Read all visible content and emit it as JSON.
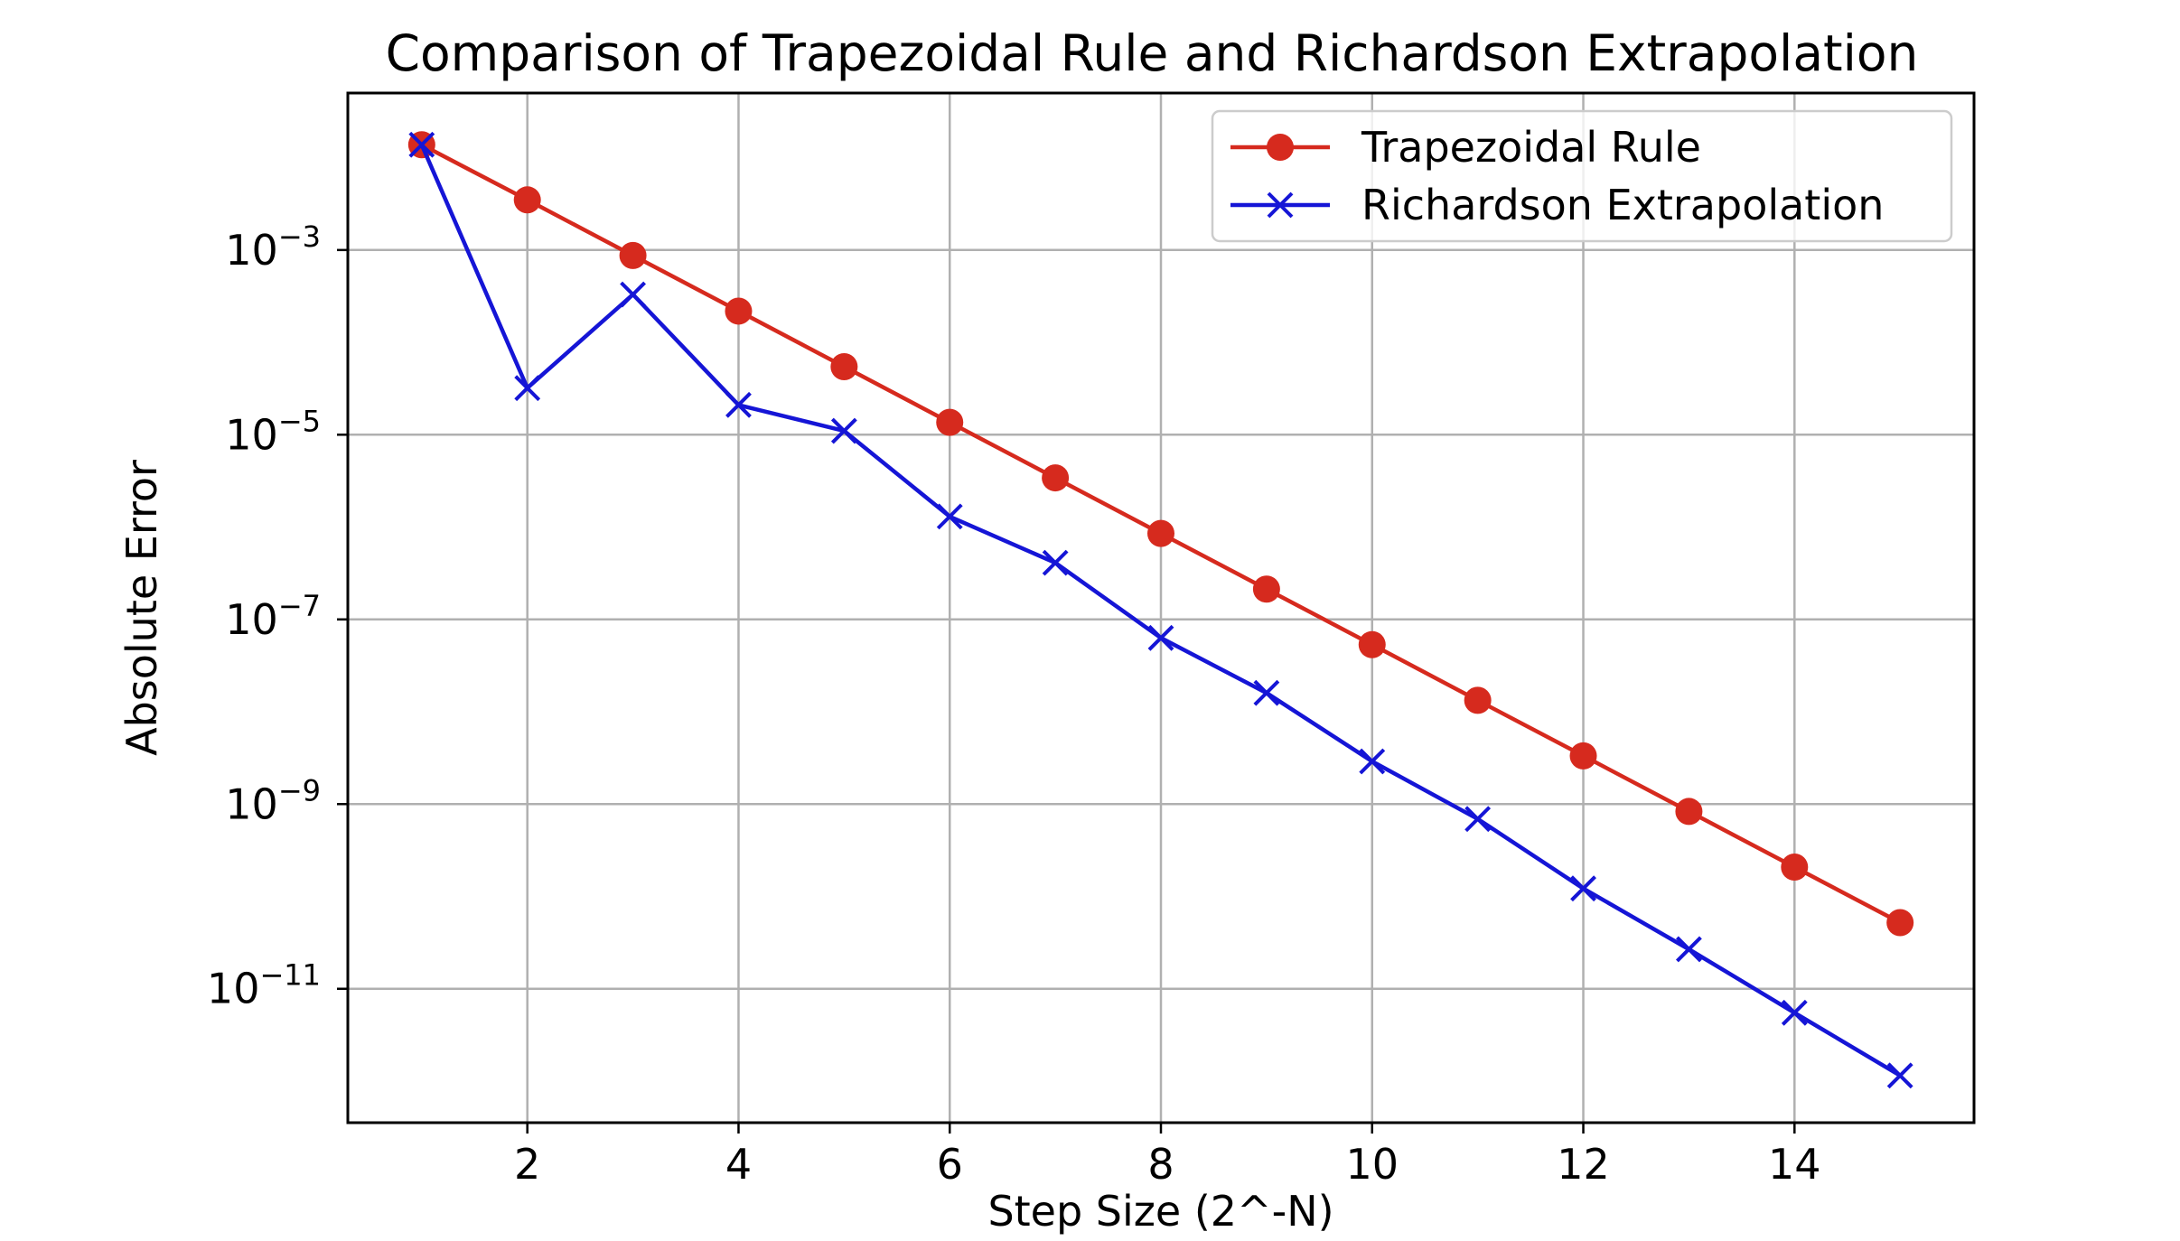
{
  "chart_data": {
    "type": "line",
    "title": "Comparison of Trapezoidal Rule and Richardson Extrapolation",
    "xlabel": "Step Size (2^-N)",
    "ylabel": "Absolute Error",
    "xscale": "linear",
    "yscale": "log",
    "xlim": [
      0.3,
      15.7
    ],
    "ylim_log10": [
      -12.45,
      -1.3
    ],
    "grid": true,
    "legend_position": "upper right",
    "x_ticks": [
      2,
      4,
      6,
      8,
      10,
      12,
      14
    ],
    "x_tick_labels": [
      "2",
      "4",
      "6",
      "8",
      "10",
      "12",
      "14"
    ],
    "y_ticks_log10": [
      -3,
      -5,
      -7,
      -9,
      -11
    ],
    "y_tick_labels": [
      {
        "base": "10",
        "exp": "−3"
      },
      {
        "base": "10",
        "exp": "−5"
      },
      {
        "base": "10",
        "exp": "−7"
      },
      {
        "base": "10",
        "exp": "−9"
      },
      {
        "base": "10",
        "exp": "−11"
      }
    ],
    "x": [
      1,
      2,
      3,
      4,
      5,
      6,
      7,
      8,
      9,
      10,
      11,
      12,
      13,
      14,
      15
    ],
    "series": [
      {
        "name": "Trapezoidal Rule",
        "marker": "circle",
        "color": "#d62a1e",
        "values": [
          0.0138,
          0.00349,
          0.000872,
          0.000218,
          5.45e-05,
          1.36e-05,
          3.41e-06,
          8.52e-07,
          2.13e-07,
          5.33e-08,
          1.33e-08,
          3.33e-09,
          8.32e-10,
          2.08e-10,
          5.2e-11
        ]
      },
      {
        "name": "Richardson Extrapolation",
        "marker": "x",
        "color": "#1515d6",
        "values": [
          0.0138,
          3.2e-05,
          0.00033,
          2.1e-05,
          1.1e-05,
          1.3e-06,
          4.1e-07,
          6.3e-08,
          1.6e-08,
          2.9e-09,
          6.9e-10,
          1.22e-10,
          2.68e-11,
          5.5e-12,
          1.15e-12
        ]
      }
    ]
  }
}
